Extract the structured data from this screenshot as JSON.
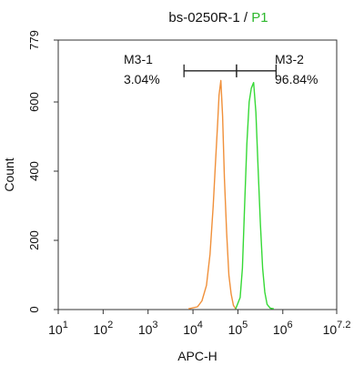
{
  "chart_data": {
    "type": "line",
    "title_prefix": "bs-0250R-1 / ",
    "title_highlight": "P1",
    "title_highlight_color": "#2db82d",
    "xlabel": "APC-H",
    "ylabel": "Count",
    "x_scale": "log",
    "xlim_log10": [
      1,
      7.2
    ],
    "ylim": [
      0,
      779
    ],
    "x_ticks": [
      {
        "log": 1,
        "base": "10",
        "exp": "1"
      },
      {
        "log": 2,
        "base": "10",
        "exp": "2"
      },
      {
        "log": 3,
        "base": "10",
        "exp": "3"
      },
      {
        "log": 4,
        "base": "10",
        "exp": "4"
      },
      {
        "log": 5,
        "base": "10",
        "exp": "5"
      },
      {
        "log": 6,
        "base": "10",
        "exp": "6"
      },
      {
        "log": 7.2,
        "base": "10",
        "exp": "7.2"
      }
    ],
    "y_ticks": [
      {
        "value": 0,
        "label": "0"
      },
      {
        "value": 200,
        "label": "200"
      },
      {
        "value": 400,
        "label": "400"
      },
      {
        "value": 600,
        "label": "600"
      },
      {
        "value": 779,
        "label": "779"
      }
    ],
    "series": [
      {
        "color": "#f0903a",
        "x_log10": [
          3.9,
          4.1,
          4.2,
          4.3,
          4.38,
          4.45,
          4.5,
          4.55,
          4.58,
          4.62,
          4.66,
          4.7,
          4.75,
          4.8,
          4.85,
          4.9,
          4.95
        ],
        "y": [
          2,
          8,
          25,
          70,
          160,
          300,
          420,
          540,
          620,
          662,
          560,
          380,
          220,
          100,
          45,
          12,
          2
        ]
      },
      {
        "color": "#36d936",
        "x_log10": [
          4.95,
          5.05,
          5.1,
          5.15,
          5.2,
          5.25,
          5.3,
          5.35,
          5.4,
          5.45,
          5.5,
          5.55,
          5.6,
          5.65,
          5.72,
          5.8
        ],
        "y": [
          2,
          35,
          120,
          300,
          480,
          600,
          640,
          656,
          570,
          410,
          250,
          120,
          50,
          15,
          4,
          2
        ]
      }
    ],
    "gates": [
      {
        "name": "M3-1",
        "percent": "3.04%",
        "x_start_log10": 3.8,
        "x_end_log10": 4.97
      },
      {
        "name": "M3-2",
        "percent": "96.84%",
        "x_start_log10": 4.97,
        "x_end_log10": 5.85
      }
    ],
    "gate_y": 690
  }
}
